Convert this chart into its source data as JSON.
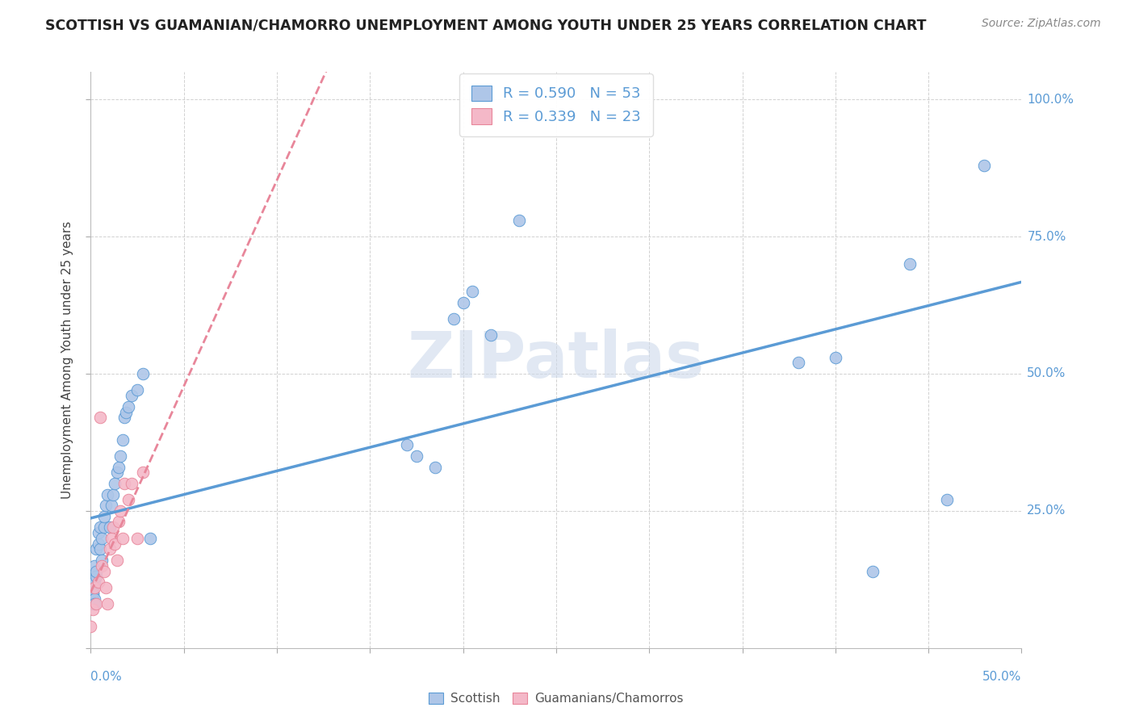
{
  "title": "SCOTTISH VS GUAMANIAN/CHAMORRO UNEMPLOYMENT AMONG YOUTH UNDER 25 YEARS CORRELATION CHART",
  "source": "Source: ZipAtlas.com",
  "ylabel": "Unemployment Among Youth under 25 years",
  "legend_label1": "Scottish",
  "legend_label2": "Guamanians/Chamorros",
  "R1": 0.59,
  "N1": 53,
  "R2": 0.339,
  "N2": 23,
  "scottish_color": "#aec6e8",
  "guamanian_color": "#f4b8c8",
  "trendline1_color": "#5b9bd5",
  "trendline2_color": "#e8869a",
  "watermark": "ZIPatlas",
  "watermark_color": "#cddaeb",
  "xlim": [
    0.0,
    0.5
  ],
  "ylim": [
    0.0,
    1.05
  ],
  "scottish_x": [
    0.0,
    0.0,
    0.001,
    0.001,
    0.001,
    0.001,
    0.001,
    0.002,
    0.002,
    0.002,
    0.002,
    0.003,
    0.003,
    0.003,
    0.004,
    0.004,
    0.005,
    0.005,
    0.006,
    0.006,
    0.007,
    0.007,
    0.008,
    0.009,
    0.01,
    0.011,
    0.012,
    0.013,
    0.014,
    0.015,
    0.016,
    0.017,
    0.018,
    0.019,
    0.02,
    0.022,
    0.025,
    0.028,
    0.032,
    0.17,
    0.175,
    0.185,
    0.195,
    0.2,
    0.205,
    0.215,
    0.23,
    0.38,
    0.4,
    0.42,
    0.44,
    0.46,
    0.48
  ],
  "scottish_y": [
    0.12,
    0.1,
    0.1,
    0.09,
    0.11,
    0.08,
    0.1,
    0.09,
    0.08,
    0.12,
    0.15,
    0.13,
    0.14,
    0.18,
    0.19,
    0.21,
    0.18,
    0.22,
    0.2,
    0.16,
    0.22,
    0.24,
    0.26,
    0.28,
    0.22,
    0.26,
    0.28,
    0.3,
    0.32,
    0.33,
    0.35,
    0.38,
    0.42,
    0.43,
    0.44,
    0.46,
    0.47,
    0.5,
    0.2,
    0.37,
    0.35,
    0.33,
    0.6,
    0.63,
    0.65,
    0.57,
    0.78,
    0.52,
    0.53,
    0.14,
    0.7,
    0.27,
    0.88
  ],
  "guamanian_x": [
    0.0,
    0.001,
    0.002,
    0.003,
    0.004,
    0.005,
    0.006,
    0.007,
    0.008,
    0.009,
    0.01,
    0.011,
    0.012,
    0.013,
    0.014,
    0.015,
    0.016,
    0.017,
    0.018,
    0.02,
    0.022,
    0.025,
    0.028
  ],
  "guamanian_y": [
    0.04,
    0.07,
    0.11,
    0.08,
    0.12,
    0.42,
    0.15,
    0.14,
    0.11,
    0.08,
    0.18,
    0.2,
    0.22,
    0.19,
    0.16,
    0.23,
    0.25,
    0.2,
    0.3,
    0.27,
    0.3,
    0.2,
    0.32
  ],
  "trendline1_x": [
    0.0,
    0.5
  ],
  "trendline1_y": [
    0.02,
    0.88
  ],
  "trendline2_x": [
    0.0,
    0.5
  ],
  "trendline2_y": [
    0.1,
    0.52
  ]
}
